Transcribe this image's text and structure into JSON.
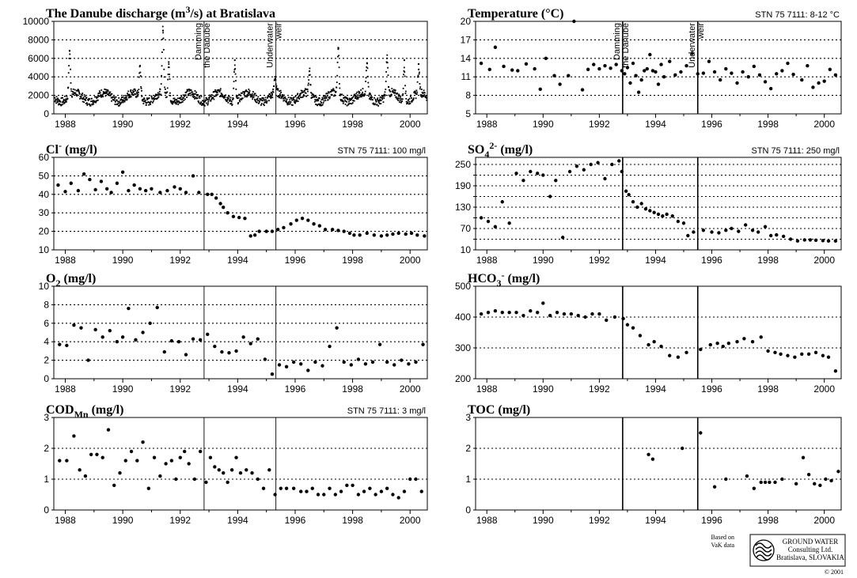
{
  "chart_data": [
    {
      "type": "scatter",
      "title": "The Danube discharge (m3/s) at Bratislava",
      "title_parts": [
        "The Danube discharge (m",
        "3",
        "/s) at Bratislava"
      ],
      "standard": "",
      "xlim": [
        1987.6,
        2000.6
      ],
      "ylim": [
        0,
        10000
      ],
      "yticks": [
        0,
        2000,
        4000,
        6000,
        8000,
        10000
      ],
      "xticks": [
        1988,
        1990,
        1992,
        1994,
        1996,
        1998,
        2000
      ],
      "grid_y": [
        2000,
        4000,
        6000,
        8000
      ],
      "events": [
        {
          "x": 1992.83,
          "label_lines": [
            "Damming",
            "the Danube"
          ]
        },
        {
          "x": 1995.33,
          "label_lines": [
            "Underwater",
            "weir"
          ]
        }
      ],
      "series_kind": "daily_discharge",
      "peaks": [
        [
          1988.15,
          6800
        ],
        [
          1990.6,
          5200
        ],
        [
          1991.4,
          9000
        ],
        [
          1991.6,
          5600
        ],
        [
          1993.9,
          5800
        ],
        [
          1995.3,
          3800
        ],
        [
          1996.5,
          4600
        ],
        [
          1997.5,
          7000
        ],
        [
          1998.5,
          5500
        ],
        [
          1999.2,
          6000
        ],
        [
          1999.8,
          5800
        ],
        [
          2000.3,
          4800
        ]
      ]
    },
    {
      "type": "scatter",
      "title": "Temperature (°C)",
      "title_parts": [
        "Temperature (°C)"
      ],
      "standard": "STN 75 7111:  8-12 °C",
      "xlim": [
        1987.6,
        2000.6
      ],
      "ylim": [
        5,
        20
      ],
      "yticks": [
        5,
        8,
        11,
        14,
        17,
        20
      ],
      "xticks": [
        1988,
        1990,
        1992,
        1994,
        1996,
        1998,
        2000
      ],
      "grid_y": [
        8,
        11,
        14,
        17
      ],
      "events": [
        {
          "x": 1992.83,
          "label_lines": [
            "Damming",
            "the Danube"
          ]
        },
        {
          "x": 1995.5,
          "label_lines": [
            "Underwater",
            "weir"
          ]
        }
      ],
      "x": [
        1987.8,
        1988.1,
        1988.3,
        1988.6,
        1988.9,
        1989.1,
        1989.4,
        1989.7,
        1989.9,
        1990.1,
        1990.4,
        1990.6,
        1990.9,
        1991.1,
        1991.4,
        1991.6,
        1991.8,
        1992.0,
        1992.2,
        1992.4,
        1992.6,
        1992.8,
        1992.9,
        1993.0,
        1993.1,
        1993.2,
        1993.3,
        1993.4,
        1993.5,
        1993.6,
        1993.7,
        1993.8,
        1993.9,
        1994.0,
        1994.1,
        1994.2,
        1994.3,
        1994.5,
        1994.7,
        1994.9,
        1995.1,
        1995.3,
        1995.5,
        1995.7,
        1995.9,
        1996.1,
        1996.3,
        1996.5,
        1996.7,
        1996.9,
        1997.1,
        1997.3,
        1997.5,
        1997.7,
        1997.9,
        1998.1,
        1998.3,
        1998.5,
        1998.7,
        1998.9,
        1999.2,
        1999.4,
        1999.6,
        1999.8,
        2000.0,
        2000.2,
        2000.4
      ],
      "y": [
        13.2,
        12.2,
        15.8,
        12.7,
        12.1,
        12.0,
        13.1,
        12.3,
        9.0,
        14.0,
        11.2,
        9.8,
        11.2,
        20.0,
        8.9,
        12.2,
        13.0,
        12.3,
        12.8,
        12.4,
        13.0,
        12.0,
        11.5,
        12.5,
        10.0,
        13.2,
        11.2,
        8.5,
        10.5,
        12.0,
        12.3,
        14.6,
        12.0,
        11.8,
        9.8,
        13.0,
        11.0,
        13.5,
        11.3,
        11.8,
        12.8,
        14.8,
        11.5,
        11.6,
        13.5,
        11.8,
        10.5,
        12.3,
        11.6,
        10.0,
        11.8,
        11.0,
        12.7,
        11.3,
        10.2,
        9.1,
        11.5,
        12.0,
        13.2,
        11.4,
        10.5,
        12.8,
        9.3,
        10.0,
        10.3,
        12.2,
        11.3
      ]
    },
    {
      "type": "scatter",
      "title": "Cl- (mg/l)",
      "title_parts": [
        "Cl",
        "-",
        " (mg/l)"
      ],
      "standard": "STN 75 7111:  100 mg/l",
      "xlim": [
        1987.6,
        2000.6
      ],
      "ylim": [
        10,
        60
      ],
      "yticks": [
        10,
        20,
        30,
        40,
        50,
        60
      ],
      "xticks": [
        1988,
        1990,
        1992,
        1994,
        1996,
        1998,
        2000
      ],
      "grid_y": [
        20,
        30,
        40,
        50
      ],
      "events": [
        {
          "x": 1992.83,
          "label_lines": []
        },
        {
          "x": 1995.33,
          "label_lines": []
        }
      ],
      "x": [
        1987.75,
        1988.0,
        1988.2,
        1988.45,
        1988.65,
        1988.85,
        1989.05,
        1989.25,
        1989.45,
        1989.6,
        1989.8,
        1990.0,
        1990.2,
        1990.4,
        1990.6,
        1990.8,
        1991.0,
        1991.3,
        1991.55,
        1991.8,
        1992.0,
        1992.2,
        1992.45,
        1992.65,
        1992.95,
        1993.1,
        1993.25,
        1993.4,
        1993.5,
        1993.65,
        1993.85,
        1994.05,
        1994.25,
        1994.45,
        1994.6,
        1994.75,
        1995.0,
        1995.2,
        1995.4,
        1995.6,
        1995.85,
        1996.05,
        1996.25,
        1996.45,
        1996.65,
        1996.85,
        1997.05,
        1997.3,
        1997.5,
        1997.7,
        1997.9,
        1998.05,
        1998.25,
        1998.5,
        1998.75,
        1999.0,
        1999.2,
        1999.4,
        1999.6,
        1999.85,
        2000.05,
        2000.25,
        2000.5
      ],
      "y": [
        45,
        41.5,
        46,
        42,
        51,
        48,
        42.5,
        47,
        43,
        41,
        46,
        52,
        42,
        45,
        43,
        42,
        43,
        41,
        42,
        44,
        43,
        41,
        50,
        41,
        40,
        40,
        38,
        35,
        33,
        30,
        28,
        27.5,
        27,
        17.5,
        18,
        20,
        20,
        20,
        21,
        22,
        24,
        26,
        27,
        26,
        24,
        23,
        21,
        21,
        20.5,
        20,
        19,
        18,
        18,
        19,
        18,
        17.5,
        18,
        18.5,
        19,
        18.5,
        19,
        18,
        17.5
      ]
    },
    {
      "type": "scatter",
      "title": "SO4 2- (mg/l)",
      "title_parts": [
        "SO",
        "4",
        "2-",
        " (mg/l)"
      ],
      "standard": "STN 75 7111:  250 mg/l",
      "xlim": [
        1987.6,
        2000.6
      ],
      "ylim": [
        10,
        270
      ],
      "yticks": [
        10,
        40,
        70,
        100,
        130,
        160,
        190,
        220,
        250
      ],
      "ytick_labels": [
        "10",
        "",
        "70",
        "",
        "130",
        "",
        "190",
        "",
        "250"
      ],
      "xticks": [
        1988,
        1990,
        1992,
        1994,
        1996,
        1998,
        2000
      ],
      "grid_y": [
        40,
        70,
        100,
        130,
        160,
        190,
        220,
        250
      ],
      "events": [
        {
          "x": 1992.83,
          "label_lines": []
        },
        {
          "x": 1995.5,
          "label_lines": []
        }
      ],
      "x": [
        1987.8,
        1988.05,
        1988.3,
        1988.55,
        1988.8,
        1989.05,
        1989.3,
        1989.55,
        1989.8,
        1990.0,
        1990.25,
        1990.45,
        1990.7,
        1990.95,
        1991.2,
        1991.45,
        1991.7,
        1991.95,
        1992.2,
        1992.45,
        1992.7,
        1992.8,
        1992.95,
        1993.05,
        1993.2,
        1993.35,
        1993.5,
        1993.65,
        1993.8,
        1993.95,
        1994.1,
        1994.25,
        1994.4,
        1994.6,
        1994.8,
        1995.0,
        1995.15,
        1995.35,
        1995.7,
        1996.0,
        1996.25,
        1996.5,
        1996.7,
        1996.95,
        1997.2,
        1997.45,
        1997.65,
        1997.9,
        1998.1,
        1998.3,
        1998.55,
        1998.8,
        1999.05,
        1999.3,
        1999.5,
        1999.7,
        1999.95,
        2000.15,
        2000.4
      ],
      "y": [
        100,
        90,
        75,
        145,
        85,
        225,
        205,
        230,
        225,
        220,
        160,
        205,
        45,
        230,
        245,
        235,
        250,
        255,
        210,
        250,
        260,
        230,
        175,
        165,
        145,
        130,
        140,
        125,
        120,
        115,
        110,
        105,
        110,
        105,
        90,
        85,
        50,
        60,
        65,
        60,
        58,
        65,
        70,
        62,
        80,
        65,
        60,
        75,
        50,
        52,
        48,
        40,
        35,
        38,
        38,
        37,
        36,
        35,
        35
      ]
    },
    {
      "type": "scatter",
      "title": "O2 (mg/l)",
      "title_parts": [
        "O",
        "2",
        " (mg/l)"
      ],
      "standard": "",
      "xlim": [
        1987.6,
        2000.6
      ],
      "ylim": [
        0,
        10
      ],
      "yticks": [
        0,
        2,
        4,
        6,
        8,
        10
      ],
      "xticks": [
        1988,
        1990,
        1992,
        1994,
        1996,
        1998,
        2000
      ],
      "grid_y": [
        2,
        4,
        6,
        8
      ],
      "events": [
        {
          "x": 1992.83,
          "label_lines": []
        },
        {
          "x": 1995.33,
          "label_lines": []
        }
      ],
      "x": [
        1987.8,
        1988.05,
        1988.3,
        1988.55,
        1988.8,
        1989.05,
        1989.3,
        1989.55,
        1989.8,
        1990.0,
        1990.2,
        1990.45,
        1990.7,
        1990.95,
        1991.2,
        1991.45,
        1991.7,
        1991.95,
        1992.2,
        1992.45,
        1992.7,
        1992.95,
        1993.2,
        1993.45,
        1993.7,
        1993.95,
        1994.2,
        1994.45,
        1994.7,
        1994.95,
        1995.2,
        1995.45,
        1995.7,
        1995.95,
        1996.2,
        1996.45,
        1996.7,
        1996.95,
        1997.2,
        1997.45,
        1997.7,
        1997.95,
        1998.2,
        1998.45,
        1998.7,
        1998.95,
        1999.2,
        1999.45,
        1999.7,
        1999.95,
        2000.2,
        2000.45
      ],
      "y": [
        3.7,
        3.6,
        5.8,
        5.5,
        2.0,
        5.3,
        4.5,
        5.2,
        4.0,
        4.5,
        7.6,
        4.2,
        5.0,
        6.0,
        7.7,
        2.9,
        4.1,
        4.0,
        2.6,
        4.3,
        4.2,
        4.8,
        3.5,
        2.9,
        2.8,
        3.0,
        4.5,
        3.8,
        4.3,
        2.1,
        0.5,
        1.5,
        1.3,
        1.8,
        1.6,
        0.9,
        1.8,
        1.4,
        3.5,
        5.5,
        1.8,
        1.5,
        2.1,
        1.6,
        1.8,
        3.7,
        1.8,
        1.5,
        2.0,
        1.6,
        1.8,
        3.7
      ]
    },
    {
      "type": "scatter",
      "title": "HCO3- (mg/l)",
      "title_parts": [
        "HCO",
        "3",
        "-",
        " (mg/l)"
      ],
      "standard": "",
      "xlim": [
        1987.6,
        2000.6
      ],
      "ylim": [
        200,
        500
      ],
      "yticks": [
        200,
        300,
        400,
        500
      ],
      "xticks": [
        1988,
        1990,
        1992,
        1994,
        1996,
        1998,
        2000
      ],
      "grid_y": [
        300,
        400
      ],
      "events": [
        {
          "x": 1992.83,
          "label_lines": []
        },
        {
          "x": 1995.5,
          "label_lines": []
        }
      ],
      "x": [
        1987.8,
        1988.05,
        1988.3,
        1988.55,
        1988.8,
        1989.05,
        1989.3,
        1989.55,
        1989.8,
        1990.0,
        1990.25,
        1990.5,
        1990.75,
        1991.0,
        1991.25,
        1991.5,
        1991.75,
        1992.0,
        1992.25,
        1992.55,
        1992.85,
        1993.0,
        1993.2,
        1993.45,
        1993.75,
        1993.95,
        1994.2,
        1994.5,
        1994.8,
        1995.1,
        1995.6,
        1995.95,
        1996.2,
        1996.4,
        1996.6,
        1996.9,
        1997.15,
        1997.45,
        1997.75,
        1998.0,
        1998.25,
        1998.45,
        1998.7,
        1998.95,
        1999.2,
        1999.45,
        1999.7,
        1999.95,
        2000.15,
        2000.4
      ],
      "y": [
        410,
        415,
        420,
        415,
        415,
        415,
        405,
        420,
        415,
        445,
        405,
        415,
        410,
        410,
        405,
        400,
        410,
        410,
        390,
        400,
        395,
        375,
        365,
        340,
        310,
        320,
        305,
        275,
        270,
        285,
        295,
        310,
        315,
        305,
        315,
        320,
        330,
        320,
        335,
        290,
        285,
        280,
        275,
        270,
        280,
        280,
        285,
        275,
        270,
        225
      ]
    },
    {
      "type": "scatter",
      "title": "CODMn (mg/l)",
      "title_parts": [
        "COD",
        "Mn",
        " (mg/l)"
      ],
      "standard": "STN 75 7111:  3 mg/l",
      "xlim": [
        1987.6,
        2000.6
      ],
      "ylim": [
        0,
        3
      ],
      "yticks": [
        0,
        1,
        2,
        3
      ],
      "xticks": [
        1988,
        1990,
        1992,
        1994,
        1996,
        1998,
        2000
      ],
      "grid_y": [
        1,
        2
      ],
      "events": [
        {
          "x": 1992.83,
          "label_lines": []
        },
        {
          "x": 1995.33,
          "label_lines": []
        }
      ],
      "x": [
        1987.8,
        1988.05,
        1988.3,
        1988.5,
        1988.7,
        1988.9,
        1989.1,
        1989.3,
        1989.5,
        1989.7,
        1989.9,
        1990.1,
        1990.3,
        1990.5,
        1990.7,
        1990.9,
        1991.1,
        1991.3,
        1991.5,
        1991.7,
        1991.85,
        1992.0,
        1992.15,
        1992.3,
        1992.5,
        1992.7,
        1992.9,
        1993.05,
        1993.2,
        1993.35,
        1993.5,
        1993.65,
        1993.8,
        1993.95,
        1994.1,
        1994.3,
        1994.5,
        1994.7,
        1994.9,
        1995.1,
        1995.3,
        1995.5,
        1995.7,
        1995.95,
        1996.2,
        1996.4,
        1996.6,
        1996.8,
        1997.0,
        1997.2,
        1997.4,
        1997.6,
        1997.8,
        1998.0,
        1998.2,
        1998.4,
        1998.6,
        1998.8,
        1999.0,
        1999.2,
        1999.4,
        1999.6,
        1999.8,
        2000.0,
        2000.2,
        2000.4
      ],
      "y": [
        1.6,
        1.6,
        2.4,
        1.3,
        1.1,
        1.8,
        1.8,
        1.7,
        2.6,
        0.8,
        1.2,
        1.6,
        1.9,
        1.6,
        2.2,
        0.7,
        1.7,
        1.1,
        1.5,
        1.6,
        1.0,
        1.7,
        1.9,
        1.5,
        1.0,
        1.9,
        0.9,
        1.7,
        1.4,
        1.3,
        1.2,
        0.9,
        1.3,
        1.7,
        1.2,
        1.3,
        1.2,
        1.0,
        0.7,
        1.3,
        0.5,
        0.7,
        0.7,
        0.7,
        0.6,
        0.6,
        0.7,
        0.5,
        0.5,
        0.7,
        0.5,
        0.6,
        0.8,
        0.8,
        0.5,
        0.6,
        0.7,
        0.5,
        0.6,
        0.7,
        0.5,
        0.4,
        0.6,
        1.0,
        1.0,
        0.6
      ]
    },
    {
      "type": "scatter",
      "title": "TOC (mg/l)",
      "title_parts": [
        "TOC (mg/l)"
      ],
      "standard": "",
      "xlim": [
        1987.6,
        2000.6
      ],
      "ylim": [
        0,
        3
      ],
      "yticks": [
        0,
        1,
        2,
        3
      ],
      "xticks": [
        1988,
        1990,
        1992,
        1994,
        1996,
        1998,
        2000
      ],
      "grid_y": [
        1,
        2
      ],
      "events": [
        {
          "x": 1992.83,
          "label_lines": []
        },
        {
          "x": 1995.5,
          "label_lines": []
        }
      ],
      "x": [
        1993.75,
        1993.9,
        1994.95,
        1995.6,
        1996.1,
        1996.5,
        1997.25,
        1997.5,
        1997.75,
        1997.9,
        1998.05,
        1998.25,
        1998.5,
        1999.0,
        1999.25,
        1999.45,
        1999.65,
        1999.85,
        2000.05,
        2000.25,
        2000.5
      ],
      "y": [
        1.8,
        1.65,
        2.0,
        2.5,
        0.75,
        1.0,
        1.1,
        0.7,
        0.9,
        0.9,
        0.9,
        0.9,
        1.0,
        0.85,
        1.7,
        1.15,
        0.85,
        0.8,
        1.0,
        0.95,
        1.25
      ]
    }
  ],
  "credit": {
    "based_on_lines": [
      "Based on",
      "VaK data"
    ],
    "company_lines": [
      "GROUND WATER",
      "Consulting Ltd.",
      "Bratislava, SLOVAKIA"
    ],
    "copyright": "© 2001",
    "logo_icon": "ground-water-logo-icon"
  }
}
